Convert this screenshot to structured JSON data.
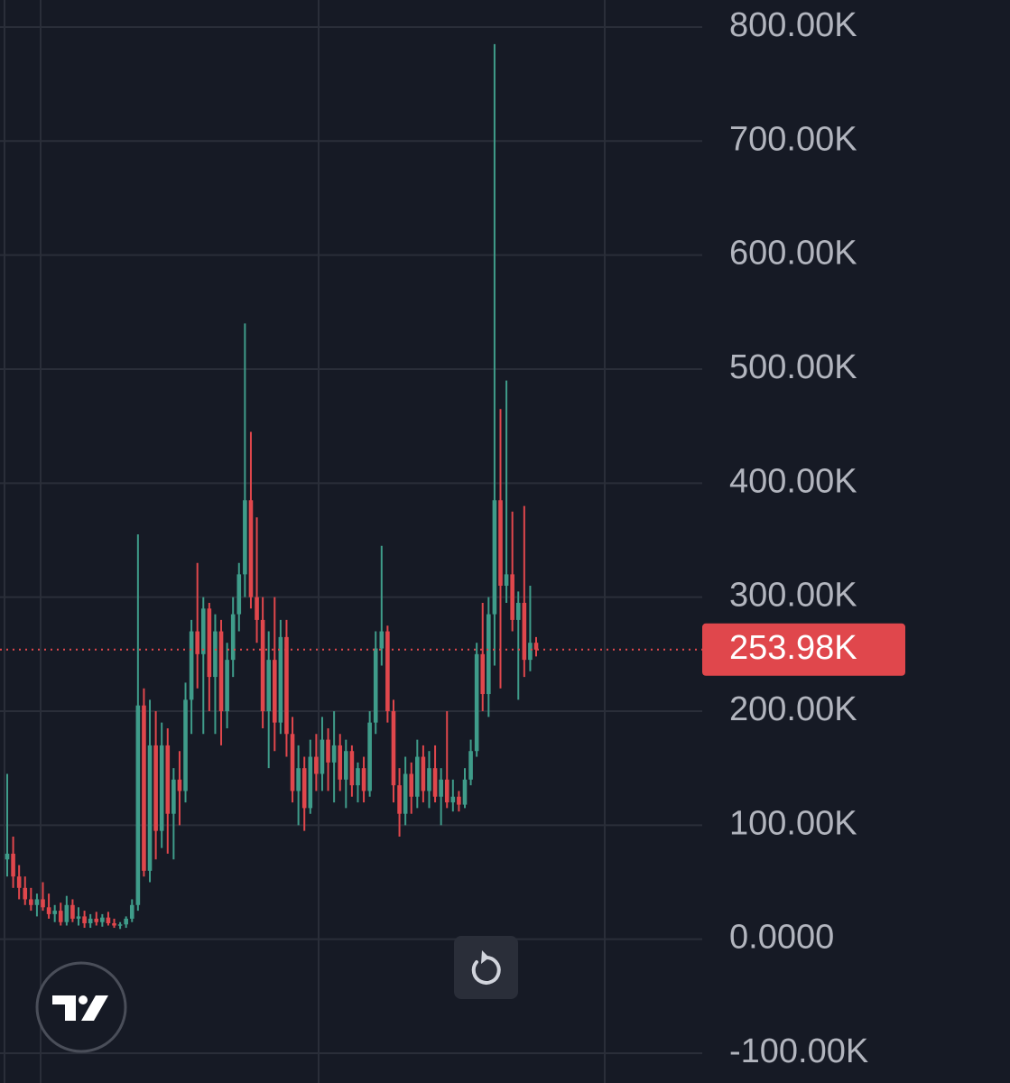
{
  "chart_data": {
    "type": "candlestick",
    "ylim": [
      -126100,
      823700
    ],
    "yticks": [
      {
        "value": 800000,
        "label": "800.00K"
      },
      {
        "value": 700000,
        "label": "700.00K"
      },
      {
        "value": 600000,
        "label": "600.00K"
      },
      {
        "value": 500000,
        "label": "500.00K"
      },
      {
        "value": 400000,
        "label": "400.00K"
      },
      {
        "value": 300000,
        "label": "300.00K"
      },
      {
        "value": 200000,
        "label": "200.00K"
      },
      {
        "value": 100000,
        "label": "100.00K"
      },
      {
        "value": 0,
        "label": "0.0000"
      },
      {
        "value": -100000,
        "label": "-100.00K"
      }
    ],
    "grid": true,
    "up_color": "#3f9c8a",
    "down_color": "#e0474c",
    "last_price": {
      "value": 253980,
      "label": "253.98K"
    },
    "open": [
      70000,
      75000,
      55000,
      45000,
      35000,
      30000,
      35000,
      28000,
      22000,
      25000,
      15000,
      30000,
      18000,
      20000,
      14000,
      18000,
      15000,
      19000,
      14000,
      12000,
      13000,
      18000,
      30000,
      205000,
      60000,
      170000,
      95000,
      170000,
      110000,
      140000,
      130000,
      210000,
      270000,
      250000,
      290000,
      230000,
      270000,
      200000,
      245000,
      285000,
      320000,
      385000,
      300000,
      280000,
      200000,
      245000,
      190000,
      265000,
      180000,
      130000,
      150000,
      115000,
      160000,
      145000,
      175000,
      155000,
      170000,
      140000,
      165000,
      135000,
      150000,
      130000,
      190000,
      255000,
      270000,
      200000,
      135000,
      110000,
      145000,
      125000,
      160000,
      130000,
      150000,
      125000,
      140000,
      120000,
      125000,
      118000,
      140000,
      165000,
      250000,
      215000,
      285000,
      385000,
      310000,
      320000,
      280000,
      295000,
      245000,
      260000
    ],
    "high": [
      145000,
      90000,
      65000,
      55000,
      45000,
      40000,
      50000,
      40000,
      30000,
      32000,
      38000,
      35000,
      28000,
      25000,
      22000,
      24000,
      22000,
      24000,
      18000,
      15000,
      20000,
      35000,
      355000,
      220000,
      210000,
      200000,
      190000,
      185000,
      150000,
      165000,
      225000,
      280000,
      330000,
      300000,
      295000,
      285000,
      280000,
      260000,
      300000,
      330000,
      540000,
      445000,
      370000,
      300000,
      270000,
      300000,
      280000,
      280000,
      195000,
      170000,
      160000,
      175000,
      180000,
      195000,
      185000,
      200000,
      180000,
      175000,
      170000,
      155000,
      160000,
      200000,
      270000,
      345000,
      275000,
      210000,
      150000,
      160000,
      155000,
      175000,
      170000,
      165000,
      170000,
      150000,
      200000,
      140000,
      130000,
      150000,
      175000,
      260000,
      295000,
      300000,
      785000,
      465000,
      490000,
      375000,
      305000,
      380000,
      310000,
      265000
    ],
    "low": [
      55000,
      45000,
      35000,
      30000,
      25000,
      20000,
      25000,
      18000,
      15000,
      12000,
      12000,
      15000,
      12000,
      10000,
      10000,
      12000,
      11000,
      12000,
      10000,
      9000,
      10000,
      15000,
      25000,
      55000,
      50000,
      70000,
      80000,
      75000,
      70000,
      100000,
      120000,
      180000,
      220000,
      180000,
      200000,
      180000,
      170000,
      185000,
      230000,
      270000,
      300000,
      290000,
      260000,
      185000,
      150000,
      165000,
      180000,
      160000,
      120000,
      100000,
      95000,
      110000,
      130000,
      130000,
      130000,
      120000,
      130000,
      115000,
      125000,
      120000,
      120000,
      125000,
      180000,
      240000,
      190000,
      120000,
      90000,
      100000,
      110000,
      115000,
      120000,
      115000,
      120000,
      100000,
      115000,
      112000,
      112000,
      115000,
      135000,
      160000,
      200000,
      195000,
      240000,
      220000,
      295000,
      270000,
      210000,
      230000,
      235000,
      248000
    ],
    "close": [
      75000,
      55000,
      45000,
      35000,
      30000,
      35000,
      28000,
      22000,
      25000,
      15000,
      30000,
      18000,
      20000,
      14000,
      18000,
      15000,
      19000,
      14000,
      12000,
      13000,
      18000,
      30000,
      205000,
      60000,
      170000,
      95000,
      170000,
      110000,
      140000,
      130000,
      210000,
      270000,
      250000,
      290000,
      230000,
      270000,
      200000,
      245000,
      285000,
      320000,
      385000,
      300000,
      280000,
      200000,
      245000,
      190000,
      265000,
      180000,
      130000,
      150000,
      115000,
      160000,
      145000,
      175000,
      155000,
      170000,
      140000,
      165000,
      135000,
      150000,
      130000,
      190000,
      255000,
      270000,
      200000,
      135000,
      110000,
      145000,
      125000,
      160000,
      130000,
      150000,
      125000,
      140000,
      120000,
      125000,
      118000,
      140000,
      165000,
      250000,
      215000,
      285000,
      385000,
      310000,
      320000,
      280000,
      295000,
      245000,
      260000,
      253980
    ]
  }
}
